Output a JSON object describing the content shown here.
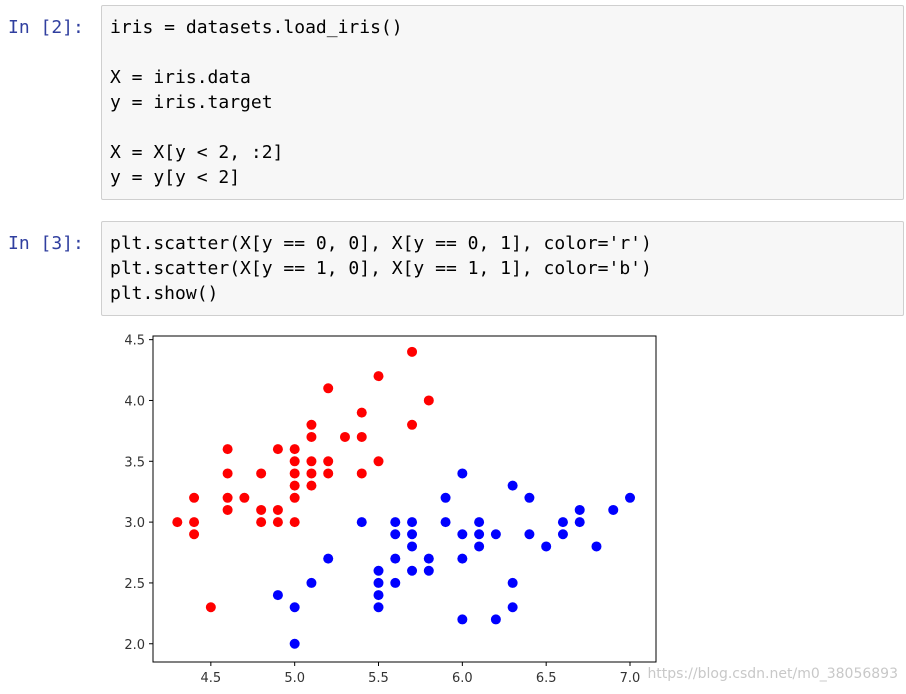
{
  "cells": [
    {
      "prompt": "In  [2]:",
      "blocks": [
        [
          "iris = datasets.load_iris()"
        ],
        [
          "X = iris.data",
          "y = iris.target"
        ],
        [
          "X = X[y < 2, :2]",
          "y = y[y < 2]"
        ]
      ]
    },
    {
      "prompt": "In  [3]:",
      "blocks": [
        [
          "plt.scatter(X[y == 0, 0], X[y == 0, 1], color='r')",
          "plt.scatter(X[y == 1, 0], X[y == 1, 1], color='b')",
          "plt.show()"
        ]
      ]
    }
  ],
  "chart_data": {
    "type": "scatter",
    "series": [
      {
        "color": "#ff0000",
        "x": [
          4.3,
          4.4,
          4.4,
          4.4,
          4.5,
          4.6,
          4.6,
          4.6,
          4.6,
          4.7,
          4.8,
          4.8,
          4.8,
          4.9,
          4.9,
          4.9,
          5.0,
          5.0,
          5.0,
          5.0,
          5.0,
          5.0,
          5.1,
          5.1,
          5.1,
          5.1,
          5.1,
          5.2,
          5.2,
          5.2,
          5.3,
          5.4,
          5.4,
          5.4,
          5.5,
          5.5,
          5.7,
          5.7,
          5.8
        ],
        "values": [
          3.0,
          3.2,
          3.0,
          2.9,
          2.3,
          3.6,
          3.4,
          3.2,
          3.1,
          3.2,
          3.4,
          3.1,
          3.0,
          3.6,
          3.1,
          3.0,
          3.6,
          3.5,
          3.4,
          3.3,
          3.2,
          3.0,
          3.8,
          3.7,
          3.5,
          3.4,
          3.3,
          4.1,
          3.5,
          3.4,
          3.7,
          3.9,
          3.7,
          3.4,
          4.2,
          3.5,
          4.4,
          3.8,
          4.0
        ]
      },
      {
        "color": "#0000ff",
        "x": [
          4.9,
          5.0,
          5.0,
          5.1,
          5.2,
          5.4,
          5.5,
          5.5,
          5.5,
          5.5,
          5.6,
          5.6,
          5.6,
          5.6,
          5.7,
          5.7,
          5.7,
          5.7,
          5.8,
          5.8,
          5.9,
          5.9,
          6.0,
          6.0,
          6.0,
          6.0,
          6.1,
          6.1,
          6.1,
          6.2,
          6.2,
          6.3,
          6.3,
          6.3,
          6.4,
          6.4,
          6.5,
          6.6,
          6.6,
          6.7,
          6.7,
          6.8,
          6.9,
          7.0
        ],
        "values": [
          2.4,
          2.3,
          2.0,
          2.5,
          2.7,
          3.0,
          2.6,
          2.5,
          2.4,
          2.3,
          3.0,
          2.9,
          2.7,
          2.5,
          3.0,
          2.9,
          2.8,
          2.6,
          2.7,
          2.6,
          3.2,
          3.0,
          3.4,
          2.9,
          2.7,
          2.2,
          3.0,
          2.9,
          2.8,
          2.9,
          2.2,
          3.3,
          2.5,
          2.3,
          3.2,
          2.9,
          2.8,
          3.0,
          2.9,
          3.1,
          3.0,
          2.8,
          3.1,
          3.2
        ]
      }
    ],
    "xlim": [
      4.155,
      7.155
    ],
    "ylim": [
      1.85,
      4.53
    ],
    "xticks": [
      4.5,
      {
        "value": 5,
        "label": "5.0"
      },
      5.5,
      {
        "value": 6,
        "label": "6.0"
      },
      6.5,
      {
        "value": 7,
        "label": "7.0"
      }
    ],
    "yticks": [
      {
        "value": 2,
        "label": "2.0"
      },
      2.5,
      {
        "value": 3,
        "label": "3.0"
      },
      3.5,
      {
        "value": 4,
        "label": "4.0"
      },
      4.5
    ]
  },
  "watermark": "https://blog.csdn.net/m0_38056893"
}
